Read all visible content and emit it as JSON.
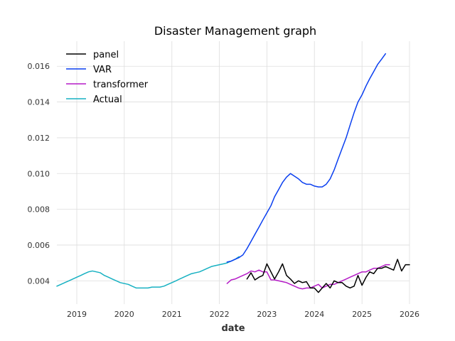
{
  "chart_data": {
    "type": "line",
    "title": "Disaster Management graph",
    "xlabel": "date",
    "ylabel": "",
    "x_axis": "date",
    "xlim": [
      "2018-08-01",
      "2026-01-01"
    ],
    "ylim": [
      0.0027,
      0.0174
    ],
    "grid": true,
    "legend_position": "top-left",
    "x_ticks": [
      "2019",
      "2020",
      "2021",
      "2022",
      "2023",
      "2024",
      "2025",
      "2026"
    ],
    "y_ticks": [
      "0.004",
      "0.006",
      "0.008",
      "0.010",
      "0.012",
      "0.014",
      "0.016"
    ],
    "series": [
      {
        "name": "panel",
        "color": "#000000",
        "points": [
          [
            "2022-08-01",
            0.0041
          ],
          [
            "2022-09-01",
            0.00445
          ],
          [
            "2022-10-01",
            0.00405
          ],
          [
            "2022-11-01",
            0.0042
          ],
          [
            "2022-12-01",
            0.0043
          ],
          [
            "2023-01-01",
            0.00495
          ],
          [
            "2023-02-01",
            0.0045
          ],
          [
            "2023-03-01",
            0.0041
          ],
          [
            "2023-04-01",
            0.0045
          ],
          [
            "2023-05-01",
            0.00495
          ],
          [
            "2023-06-01",
            0.0043
          ],
          [
            "2023-07-01",
            0.0041
          ],
          [
            "2023-08-01",
            0.00385
          ],
          [
            "2023-09-01",
            0.004
          ],
          [
            "2023-10-01",
            0.0039
          ],
          [
            "2023-11-01",
            0.00395
          ],
          [
            "2023-12-01",
            0.0036
          ],
          [
            "2024-01-01",
            0.0036
          ],
          [
            "2024-02-01",
            0.00335
          ],
          [
            "2024-03-01",
            0.0036
          ],
          [
            "2024-04-01",
            0.00385
          ],
          [
            "2024-05-01",
            0.0036
          ],
          [
            "2024-06-01",
            0.004
          ],
          [
            "2024-07-01",
            0.0039
          ],
          [
            "2024-08-01",
            0.0039
          ],
          [
            "2024-09-01",
            0.0037
          ],
          [
            "2024-10-01",
            0.0036
          ],
          [
            "2024-11-01",
            0.0037
          ],
          [
            "2024-12-01",
            0.0043
          ],
          [
            "2025-01-01",
            0.00375
          ],
          [
            "2025-02-01",
            0.0042
          ],
          [
            "2025-03-01",
            0.0045
          ],
          [
            "2025-04-01",
            0.0044
          ],
          [
            "2025-05-01",
            0.0047
          ],
          [
            "2025-06-01",
            0.0047
          ],
          [
            "2025-07-01",
            0.0048
          ],
          [
            "2025-08-01",
            0.0047
          ],
          [
            "2025-09-01",
            0.0046
          ],
          [
            "2025-10-01",
            0.0052
          ],
          [
            "2025-11-01",
            0.00455
          ],
          [
            "2025-12-01",
            0.0049
          ],
          [
            "2026-01-01",
            0.0049
          ]
        ]
      },
      {
        "name": "VAR",
        "color": "#0a3ff0",
        "points": [
          [
            "2022-03-01",
            0.00505
          ],
          [
            "2022-04-01",
            0.0051
          ],
          [
            "2022-05-01",
            0.0052
          ],
          [
            "2022-06-01",
            0.0053
          ],
          [
            "2022-07-01",
            0.00545
          ],
          [
            "2022-08-01",
            0.0058
          ],
          [
            "2022-09-01",
            0.0062
          ],
          [
            "2022-10-01",
            0.0066
          ],
          [
            "2022-11-01",
            0.007
          ],
          [
            "2022-12-01",
            0.0074
          ],
          [
            "2023-01-01",
            0.0078
          ],
          [
            "2023-02-01",
            0.0082
          ],
          [
            "2023-03-01",
            0.0087
          ],
          [
            "2023-04-01",
            0.0091
          ],
          [
            "2023-05-01",
            0.0095
          ],
          [
            "2023-06-01",
            0.0098
          ],
          [
            "2023-07-01",
            0.01
          ],
          [
            "2023-08-01",
            0.00985
          ],
          [
            "2023-09-01",
            0.0097
          ],
          [
            "2023-10-01",
            0.0095
          ],
          [
            "2023-11-01",
            0.0094
          ],
          [
            "2023-12-01",
            0.0094
          ],
          [
            "2024-01-01",
            0.0093
          ],
          [
            "2024-02-01",
            0.00925
          ],
          [
            "2024-03-01",
            0.00925
          ],
          [
            "2024-04-01",
            0.0094
          ],
          [
            "2024-05-01",
            0.0097
          ],
          [
            "2024-06-01",
            0.0102
          ],
          [
            "2024-07-01",
            0.0108
          ],
          [
            "2024-08-01",
            0.0114
          ],
          [
            "2024-09-01",
            0.012
          ],
          [
            "2024-10-01",
            0.0127
          ],
          [
            "2024-11-01",
            0.0134
          ],
          [
            "2024-12-01",
            0.014
          ],
          [
            "2025-01-01",
            0.0144
          ],
          [
            "2025-02-01",
            0.0149
          ],
          [
            "2025-03-01",
            0.0153
          ],
          [
            "2025-04-01",
            0.0157
          ],
          [
            "2025-05-01",
            0.0161
          ],
          [
            "2025-06-01",
            0.0164
          ],
          [
            "2025-07-01",
            0.0167
          ]
        ]
      },
      {
        "name": "transformer",
        "color": "#b51bc7",
        "points": [
          [
            "2022-03-01",
            0.00385
          ],
          [
            "2022-04-01",
            0.00405
          ],
          [
            "2022-05-01",
            0.0041
          ],
          [
            "2022-06-01",
            0.0042
          ],
          [
            "2022-07-01",
            0.0043
          ],
          [
            "2022-08-01",
            0.0044
          ],
          [
            "2022-09-01",
            0.00455
          ],
          [
            "2022-10-01",
            0.0045
          ],
          [
            "2022-11-01",
            0.0046
          ],
          [
            "2022-12-01",
            0.0045
          ],
          [
            "2023-01-01",
            0.0045
          ],
          [
            "2023-02-01",
            0.00405
          ],
          [
            "2023-03-01",
            0.00405
          ],
          [
            "2023-04-01",
            0.004
          ],
          [
            "2023-05-01",
            0.00395
          ],
          [
            "2023-06-01",
            0.0039
          ],
          [
            "2023-07-01",
            0.0038
          ],
          [
            "2023-08-01",
            0.0037
          ],
          [
            "2023-09-01",
            0.0036
          ],
          [
            "2023-10-01",
            0.00355
          ],
          [
            "2023-11-01",
            0.0036
          ],
          [
            "2023-12-01",
            0.0036
          ],
          [
            "2024-01-01",
            0.0037
          ],
          [
            "2024-02-01",
            0.0038
          ],
          [
            "2024-03-01",
            0.0036
          ],
          [
            "2024-04-01",
            0.0037
          ],
          [
            "2024-05-01",
            0.0038
          ],
          [
            "2024-06-01",
            0.0038
          ],
          [
            "2024-07-01",
            0.0039
          ],
          [
            "2024-08-01",
            0.004
          ],
          [
            "2024-09-01",
            0.0041
          ],
          [
            "2024-10-01",
            0.0042
          ],
          [
            "2024-11-01",
            0.0043
          ],
          [
            "2024-12-01",
            0.0044
          ],
          [
            "2025-01-01",
            0.0045
          ],
          [
            "2025-02-01",
            0.0045
          ],
          [
            "2025-03-01",
            0.0046
          ],
          [
            "2025-04-01",
            0.0047
          ],
          [
            "2025-05-01",
            0.0047
          ],
          [
            "2025-06-01",
            0.0048
          ],
          [
            "2025-07-01",
            0.0049
          ],
          [
            "2025-08-01",
            0.0049
          ]
        ]
      },
      {
        "name": "Actual",
        "color": "#17b1c2",
        "points": [
          [
            "2018-08-01",
            0.0037
          ],
          [
            "2018-09-01",
            0.0038
          ],
          [
            "2018-10-01",
            0.0039
          ],
          [
            "2018-11-01",
            0.004
          ],
          [
            "2018-12-01",
            0.0041
          ],
          [
            "2019-01-01",
            0.0042
          ],
          [
            "2019-02-01",
            0.0043
          ],
          [
            "2019-03-01",
            0.0044
          ],
          [
            "2019-04-01",
            0.0045
          ],
          [
            "2019-05-01",
            0.00455
          ],
          [
            "2019-06-01",
            0.0045
          ],
          [
            "2019-07-01",
            0.00445
          ],
          [
            "2019-08-01",
            0.0043
          ],
          [
            "2019-09-01",
            0.0042
          ],
          [
            "2019-10-01",
            0.0041
          ],
          [
            "2019-11-01",
            0.004
          ],
          [
            "2019-12-01",
            0.0039
          ],
          [
            "2020-01-01",
            0.00385
          ],
          [
            "2020-02-01",
            0.0038
          ],
          [
            "2020-03-01",
            0.0037
          ],
          [
            "2020-04-01",
            0.0036
          ],
          [
            "2020-05-01",
            0.0036
          ],
          [
            "2020-06-01",
            0.0036
          ],
          [
            "2020-07-01",
            0.0036
          ],
          [
            "2020-08-01",
            0.00365
          ],
          [
            "2020-09-01",
            0.00365
          ],
          [
            "2020-10-01",
            0.00365
          ],
          [
            "2020-11-01",
            0.0037
          ],
          [
            "2020-12-01",
            0.0038
          ],
          [
            "2021-01-01",
            0.0039
          ],
          [
            "2021-02-01",
            0.004
          ],
          [
            "2021-03-01",
            0.0041
          ],
          [
            "2021-04-01",
            0.0042
          ],
          [
            "2021-05-01",
            0.0043
          ],
          [
            "2021-06-01",
            0.0044
          ],
          [
            "2021-07-01",
            0.00445
          ],
          [
            "2021-08-01",
            0.0045
          ],
          [
            "2021-09-01",
            0.0046
          ],
          [
            "2021-10-01",
            0.0047
          ],
          [
            "2021-11-01",
            0.0048
          ],
          [
            "2021-12-01",
            0.00485
          ],
          [
            "2022-01-01",
            0.0049
          ],
          [
            "2022-02-01",
            0.00495
          ],
          [
            "2022-03-01",
            0.005
          ],
          [
            "2022-04-01",
            0.0051
          ],
          [
            "2022-05-01",
            0.0052
          ],
          [
            "2022-06-01",
            0.00535
          ]
        ]
      }
    ]
  }
}
